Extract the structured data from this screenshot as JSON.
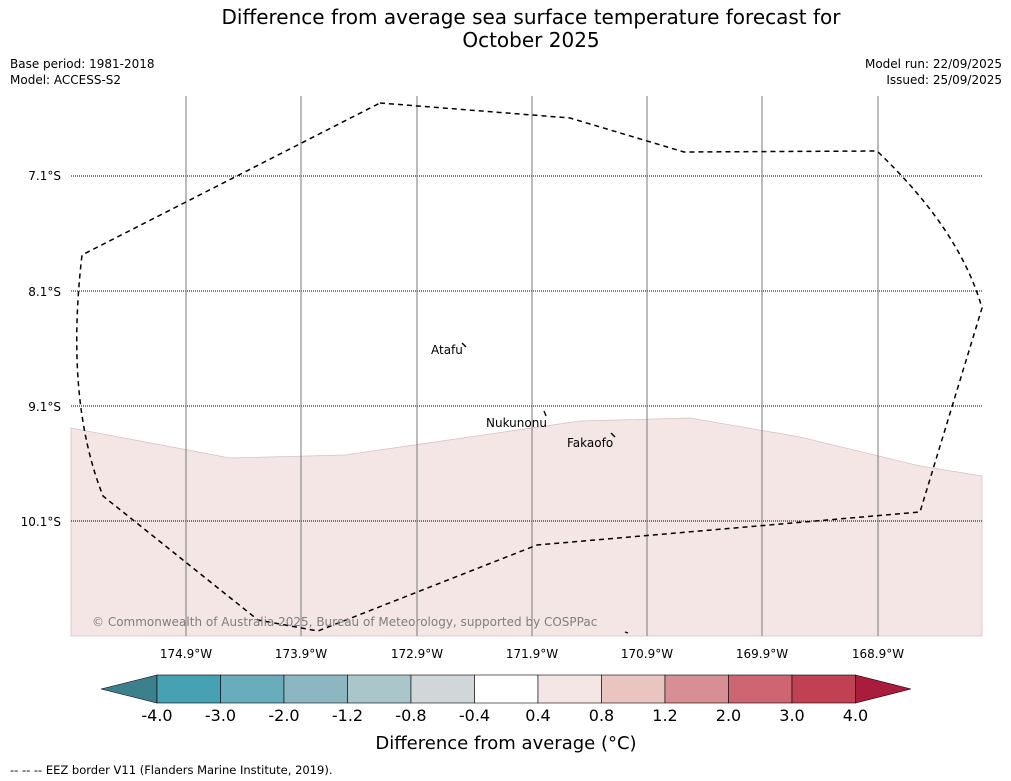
{
  "title_line1": "Difference from average sea surface temperature forecast for",
  "title_line2": "October 2025",
  "meta": {
    "base_period": "Base period: 1981-2018",
    "model": "Model: ACCESS-S2",
    "model_run": "Model run: 22/09/2025",
    "issued": "Issued: 25/09/2025"
  },
  "map": {
    "lat_labels": [
      "7.1°S",
      "8.1°S",
      "9.1°S",
      "10.1°S"
    ],
    "lon_labels": [
      "174.9°W",
      "173.9°W",
      "172.9°W",
      "171.9°W",
      "170.9°W",
      "169.9°W",
      "168.9°W"
    ],
    "places": [
      "Atafu",
      "Nukunonu",
      "Fakaofo"
    ],
    "anomaly_fill_color": "#f3e6e5",
    "copyright": "© Commonwealth of Australia 2025, Bureau of Meteorology, supported by COSPPac"
  },
  "colorbar": {
    "tick_labels": [
      "-4.0",
      "-3.0",
      "-2.0",
      "-1.2",
      "-0.8",
      "-0.4",
      "0.4",
      "0.8",
      "1.2",
      "2.0",
      "3.0",
      "4.0"
    ],
    "colors": [
      "#3d808d",
      "#46a1b2",
      "#69adbc",
      "#8cb7c0",
      "#aac6cb",
      "#d1d7d8",
      "#ffffff",
      "#f3e6e5",
      "#e9c4c1",
      "#d88e95",
      "#cd6672",
      "#c04153",
      "#a91c3b"
    ],
    "label": "Difference from average (°C)"
  },
  "footer": "--  --  -- EEZ border V11 (Flanders Marine Institute, 2019)."
}
